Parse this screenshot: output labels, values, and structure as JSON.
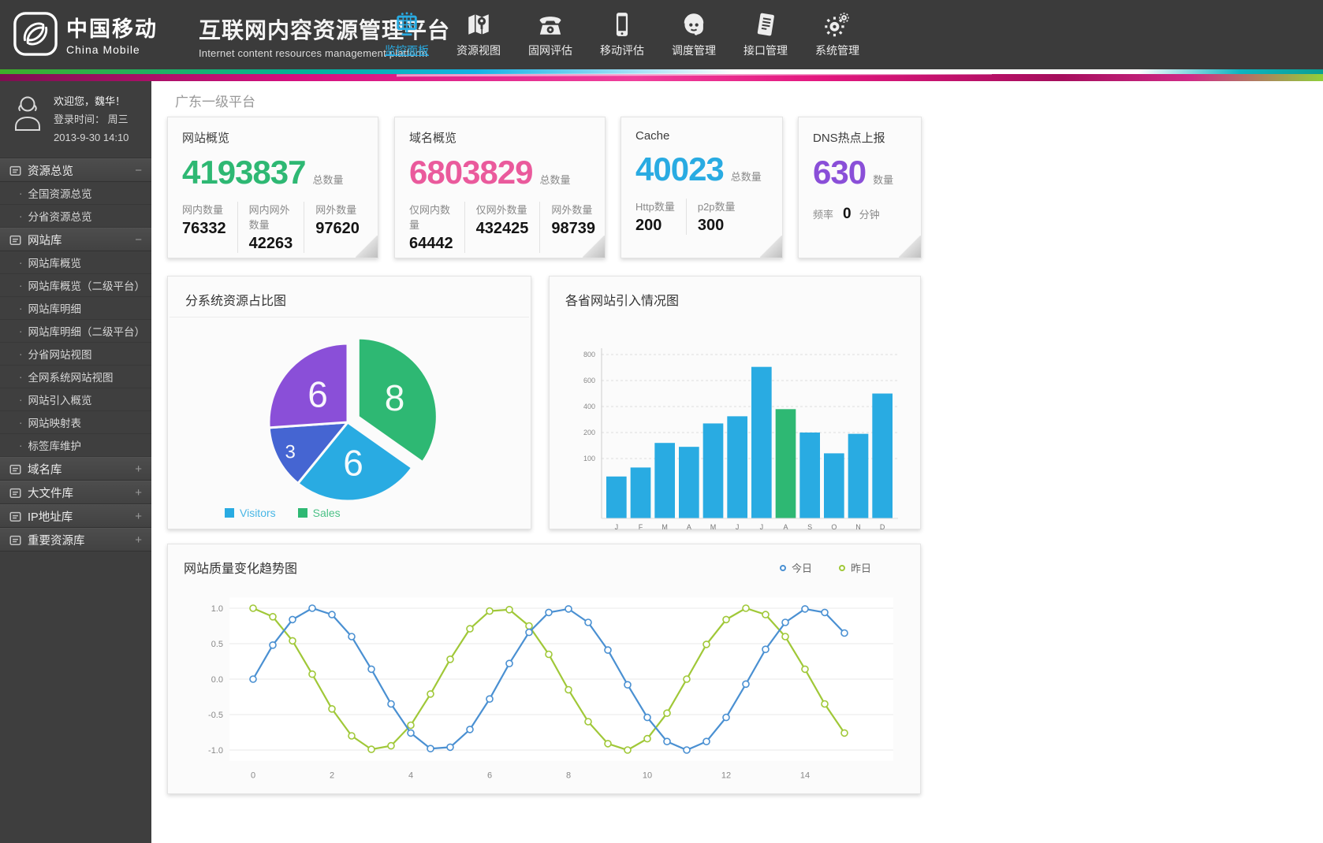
{
  "header": {
    "brand_cn": "中国移动",
    "brand_en": "China Mobile",
    "platform_title": "互联网内容资源管理平台",
    "platform_subtitle": "Internet content resources management platform",
    "nav_items": [
      {
        "label": "监控面板",
        "icon": "dashboard-icon",
        "active": true
      },
      {
        "label": "资源视图",
        "icon": "map-icon",
        "active": false
      },
      {
        "label": "固网评估",
        "icon": "phone-icon",
        "active": false
      },
      {
        "label": "移动评估",
        "icon": "mobile-icon",
        "active": false
      },
      {
        "label": "调度管理",
        "icon": "operator-icon",
        "active": false
      },
      {
        "label": "接口管理",
        "icon": "interface-icon",
        "active": false
      },
      {
        "label": "系统管理",
        "icon": "gears-icon",
        "active": false
      }
    ]
  },
  "user": {
    "welcome": "欢迎您，魏华！",
    "login_line": "登录时间： 周三",
    "datetime": "2013-9-30  14:10"
  },
  "sidebar": {
    "sections": [
      {
        "label": "资源总览",
        "toggle": "−",
        "expanded": true,
        "items": [
          "全国资源总览",
          "分省资源总览"
        ]
      },
      {
        "label": "网站库",
        "toggle": "−",
        "expanded": true,
        "items": [
          "网站库概览",
          "网站库概览（二级平台）",
          "网站库明细",
          "网站库明细（二级平台）",
          "分省网站视图",
          "全网系统网站视图",
          "网站引入概览",
          "网站映射表",
          "标签库维护"
        ]
      },
      {
        "label": "域名库",
        "toggle": "+",
        "expanded": false,
        "items": []
      },
      {
        "label": "大文件库",
        "toggle": "+",
        "expanded": false,
        "items": []
      },
      {
        "label": "IP地址库",
        "toggle": "+",
        "expanded": false,
        "items": []
      },
      {
        "label": "重要资源库",
        "toggle": "+",
        "expanded": false,
        "items": []
      }
    ]
  },
  "page": {
    "title": "广东一级平台"
  },
  "stat_cards": [
    {
      "title": "网站概览",
      "big_value": "4193837",
      "big_unit": "总数量",
      "accent": "#2eb873",
      "stats": [
        {
          "label": "网内数量",
          "value": "76332"
        },
        {
          "label": "网内网外数量",
          "value": "42263"
        },
        {
          "label": "网外数量",
          "value": "97620"
        }
      ]
    },
    {
      "title": "域名概览",
      "big_value": "6803829",
      "big_unit": "总数量",
      "accent": "#ea5a9c",
      "stats": [
        {
          "label": "仅网内数量",
          "value": "64442"
        },
        {
          "label": "仅网外数量",
          "value": "432425"
        },
        {
          "label": "网外数量",
          "value": "98739"
        }
      ]
    },
    {
      "title": "Cache",
      "big_value": "40023",
      "big_unit": "总数量",
      "accent": "#29abe2",
      "stats": [
        {
          "label": "Http数量",
          "value": "200"
        },
        {
          "label": "p2p数量",
          "value": "300"
        }
      ]
    },
    {
      "title": "DNS热点上报",
      "big_value": "630",
      "big_unit": "数量",
      "accent": "#8a4fd8",
      "inline_stat": {
        "label": "频率",
        "value": "0",
        "unit": "分钟"
      }
    }
  ],
  "chart_data": [
    {
      "type": "pie",
      "title": "分系统资源占比图",
      "slices": [
        {
          "value": 8,
          "label": "8",
          "color": "#2eb873",
          "exploded": true
        },
        {
          "value": 6,
          "label": "6",
          "color": "#29abe2",
          "exploded": false
        },
        {
          "value": 3,
          "label": "3",
          "color": "#4565d2",
          "exploded": false
        },
        {
          "value": 6,
          "label": "6",
          "color": "#8a4fd8",
          "exploded": false
        }
      ],
      "legend": [
        {
          "label": "Visitors",
          "color": "#29abe2"
        },
        {
          "label": "Sales",
          "color": "#2eb873"
        }
      ],
      "start_angle_deg": 0,
      "clockwise": true
    },
    {
      "type": "bar",
      "title": "各省网站引入情况图",
      "categories": [
        "J",
        "F",
        "M",
        "A",
        "M",
        "J",
        "J",
        "A",
        "S",
        "O",
        "N",
        "D"
      ],
      "values": [
        70,
        85,
        160,
        145,
        270,
        325,
        705,
        380,
        200,
        120,
        195,
        500
      ],
      "highlight_index": 7,
      "colors": {
        "bar": "#29abe2",
        "highlight": "#2eb873"
      },
      "yticks": [
        100,
        200,
        400,
        600,
        800
      ],
      "grid": true,
      "legend_position": "none"
    },
    {
      "type": "line",
      "title": "网站质量变化趋势图",
      "legend": [
        {
          "label": "今日",
          "color": "#4a90d2"
        },
        {
          "label": "昨日",
          "color": "#a0c838"
        }
      ],
      "x": [
        0,
        0.5,
        1,
        1.5,
        2,
        2.5,
        3,
        3.5,
        4,
        4.5,
        5,
        5.5,
        6,
        6.5,
        7,
        7.5,
        8,
        8.5,
        9,
        9.5,
        10,
        10.5,
        11,
        11.5,
        12,
        12.5,
        13,
        13.5,
        14,
        14.5,
        15
      ],
      "series": [
        {
          "name": "今日",
          "color": "#4a90d2",
          "values": [
            0,
            0.48,
            0.84,
            1,
            0.91,
            0.6,
            0.14,
            -0.35,
            -0.76,
            -0.98,
            -0.96,
            -0.71,
            -0.28,
            0.22,
            0.66,
            0.94,
            0.99,
            0.8,
            0.41,
            -0.08,
            -0.54,
            -0.88,
            -1,
            -0.88,
            -0.54,
            -0.07,
            0.42,
            0.8,
            0.99,
            0.94,
            0.65
          ]
        },
        {
          "name": "昨日",
          "color": "#a0c838",
          "values": [
            1,
            0.88,
            0.54,
            0.07,
            -0.42,
            -0.8,
            -0.99,
            -0.94,
            -0.65,
            -0.21,
            0.28,
            0.71,
            0.96,
            0.98,
            0.75,
            0.35,
            -0.15,
            -0.6,
            -0.91,
            -1,
            -0.84,
            -0.48,
            0,
            0.49,
            0.84,
            1,
            0.91,
            0.6,
            0.14,
            -0.35,
            -0.76
          ]
        }
      ],
      "yticks": [
        1.0,
        0.5,
        0.0,
        -0.5,
        -1.0
      ],
      "xticks": [
        0,
        2,
        4,
        6,
        8,
        10,
        12,
        14
      ],
      "ylim": [
        -1.1,
        1.1
      ],
      "grid": true,
      "legend_position": "top-right"
    }
  ]
}
